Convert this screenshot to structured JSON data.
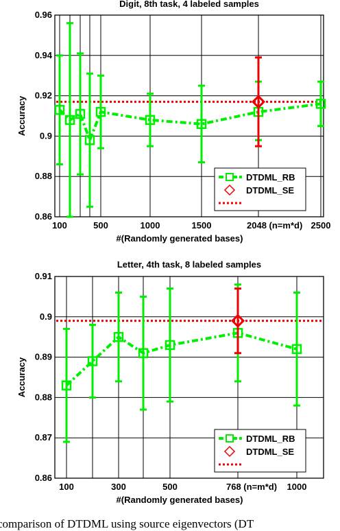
{
  "chart_data": [
    {
      "type": "line",
      "title": "Digit, 8th task, 4 labeled samples",
      "xlabel": "#(Randomly generated bases)",
      "ylabel": "Accuracy",
      "xlim": [
        80,
        2520
      ],
      "ylim": [
        0.86,
        0.96
      ],
      "xticks": [
        100,
        500,
        1000,
        1500,
        2048,
        2500
      ],
      "xtick_labels": [
        "100",
        "500",
        "1000",
        "1500",
        "2048 (n=m*d)",
        "2500"
      ],
      "yticks": [
        0.86,
        0.88,
        0.9,
        0.92,
        0.94,
        0.96
      ],
      "ytick_labels": [
        "0.86",
        "0.88",
        "0.9",
        "0.92",
        "0.94",
        "0.96"
      ],
      "x_gridlines": [
        100,
        200,
        300,
        400,
        500,
        1000,
        1500,
        2048,
        2500
      ],
      "grid": true,
      "series": [
        {
          "name": "DTDML_RB",
          "color": "#00ee00",
          "x": [
            100,
            200,
            300,
            400,
            500,
            1000,
            1500,
            2048,
            2500
          ],
          "y": [
            0.913,
            0.908,
            0.911,
            0.898,
            0.912,
            0.908,
            0.906,
            0.912,
            0.916
          ],
          "err_low": [
            0.886,
            0.86,
            0.881,
            0.865,
            0.894,
            0.895,
            0.887,
            0.898,
            0.905
          ],
          "err_high": [
            0.94,
            0.956,
            0.941,
            0.931,
            0.93,
            0.921,
            0.925,
            0.927,
            0.927
          ]
        },
        {
          "name": "DTDML_SE",
          "color": "#ee0000",
          "x": [
            2048
          ],
          "y": [
            0.917
          ],
          "err_low": [
            0.895
          ],
          "err_high": [
            0.939
          ]
        }
      ],
      "reference_line": {
        "y": 0.917,
        "color": "#ee0000"
      },
      "legend_position": "bottom-right"
    },
    {
      "type": "line",
      "title": "Letter, 4th task, 8 labeled samples",
      "xlabel": "#(Randomly generated bases)",
      "ylabel": "Accuracy",
      "xlim": [
        60,
        1050
      ],
      "ylim": [
        0.86,
        0.91
      ],
      "xticks": [
        100,
        300,
        500,
        768,
        1000
      ],
      "xtick_labels": [
        "100",
        "300",
        "500",
        "768 (n=m*d)",
        "1000"
      ],
      "yticks": [
        0.86,
        0.87,
        0.88,
        0.89,
        0.9,
        0.91
      ],
      "ytick_labels": [
        "0.86",
        "0.87",
        "0.88",
        "0.89",
        "0.9",
        "0.91"
      ],
      "x_gridlines": [
        100,
        200,
        300,
        400,
        500,
        768,
        1000
      ],
      "grid": true,
      "series": [
        {
          "name": "DTDML_RB",
          "color": "#00ee00",
          "x": [
            100,
            200,
            300,
            400,
            500,
            768,
            1000
          ],
          "y": [
            0.883,
            0.889,
            0.895,
            0.891,
            0.893,
            0.896,
            0.892
          ],
          "err_low": [
            0.869,
            0.88,
            0.884,
            0.877,
            0.879,
            0.884,
            0.878
          ],
          "err_high": [
            0.897,
            0.898,
            0.906,
            0.905,
            0.907,
            0.908,
            0.906
          ]
        },
        {
          "name": "DTDML_SE",
          "color": "#ee0000",
          "x": [
            768
          ],
          "y": [
            0.899
          ],
          "err_low": [
            0.891
          ],
          "err_high": [
            0.907
          ]
        }
      ],
      "reference_line": {
        "y": 0.899,
        "color": "#ee0000"
      },
      "legend_position": "bottom-right"
    }
  ],
  "caption": "comparison of DTDML using source eigenvectors (DT"
}
